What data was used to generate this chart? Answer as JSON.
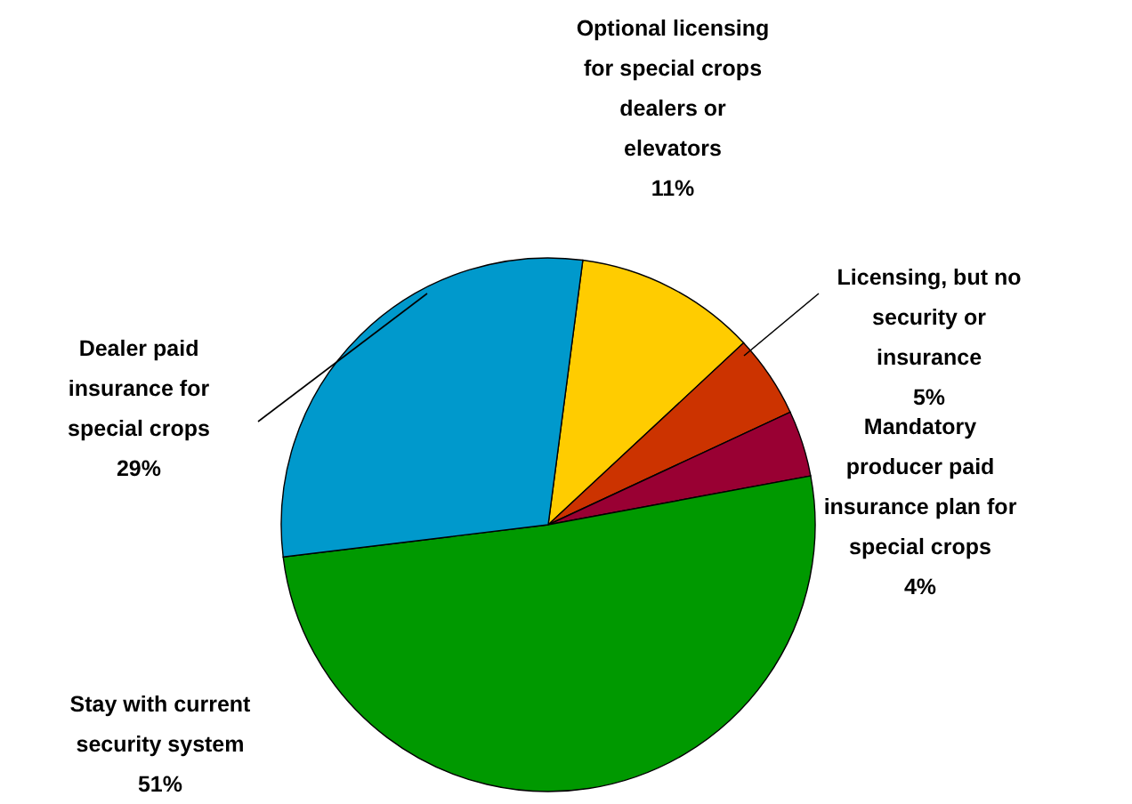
{
  "chart_data": {
    "type": "pie",
    "categories": [
      "Optional licensing\nfor special crops\ndealers or\nelevators",
      "Licensing, but no\nsecurity or\ninsurance",
      "Mandatory\nproducer paid\ninsurance plan for\nspecial crops",
      "Stay with current\nsecurity system",
      "Dealer paid\ninsurance for\nspecial crops"
    ],
    "values": [
      11,
      5,
      4,
      51,
      29
    ],
    "value_labels": [
      "11%",
      "5%",
      "4%",
      "51%",
      "29%"
    ],
    "colors": [
      "#ffcc00",
      "#cc3300",
      "#990033",
      "#009900",
      "#0099cc"
    ]
  }
}
